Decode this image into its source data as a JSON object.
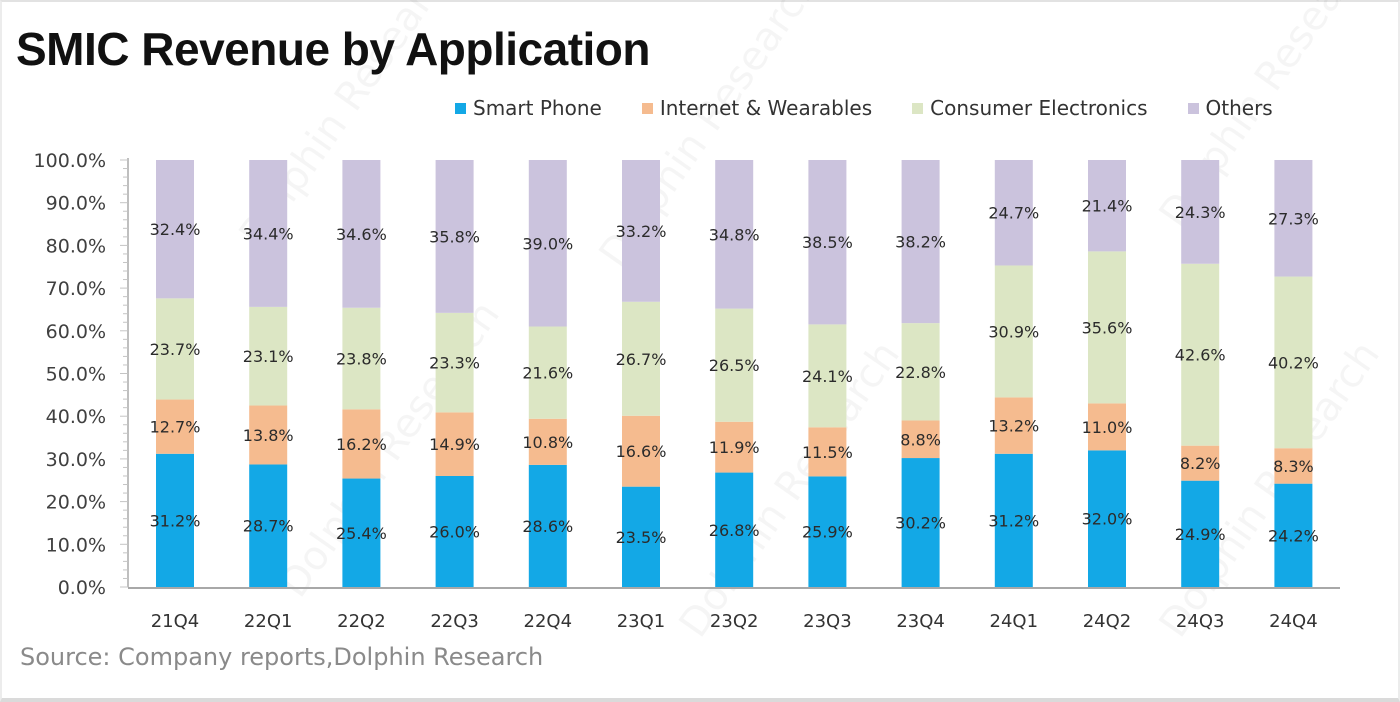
{
  "chart_data": {
    "type": "bar",
    "stacked": true,
    "title": "SMIC Revenue by Application",
    "xlabel": "",
    "ylabel": "",
    "ylim": [
      0,
      100
    ],
    "y_ticks": [
      "0.0%",
      "10.0%",
      "20.0%",
      "30.0%",
      "40.0%",
      "50.0%",
      "60.0%",
      "70.0%",
      "80.0%",
      "90.0%",
      "100.0%"
    ],
    "grid": false,
    "legend_position": "top-right",
    "categories": [
      "21Q4",
      "22Q1",
      "22Q2",
      "22Q3",
      "22Q4",
      "23Q1",
      "23Q2",
      "23Q3",
      "23Q4",
      "24Q1",
      "24Q2",
      "24Q3",
      "24Q4"
    ],
    "series": [
      {
        "name": "Smart Phone",
        "color": "#13a8e6",
        "values": [
          31.2,
          28.7,
          25.4,
          26.0,
          28.6,
          23.5,
          26.8,
          25.9,
          30.2,
          31.2,
          32.0,
          24.9,
          24.2
        ],
        "labels": [
          "31.2%",
          "28.7%",
          "25.4%",
          "26.0%",
          "28.6%",
          "23.5%",
          "26.8%",
          "25.9%",
          "30.2%",
          "31.2%",
          "32.0%",
          "24.9%",
          "24.2%"
        ]
      },
      {
        "name": "Internet & Wearables",
        "color": "#f5bb8f",
        "values": [
          12.7,
          13.8,
          16.2,
          14.9,
          10.8,
          16.6,
          11.9,
          11.5,
          8.8,
          13.2,
          11.0,
          8.2,
          8.3
        ],
        "labels": [
          "12.7%",
          "13.8%",
          "16.2%",
          "14.9%",
          "10.8%",
          "16.6%",
          "11.9%",
          "11.5%",
          "8.8%",
          "13.2%",
          "11.0%",
          "8.2%",
          "8.3%"
        ]
      },
      {
        "name": "Consumer Electronics",
        "color": "#dce6c4",
        "values": [
          23.7,
          23.1,
          23.8,
          23.3,
          21.6,
          26.7,
          26.5,
          24.1,
          22.8,
          30.9,
          35.6,
          42.6,
          40.2
        ],
        "labels": [
          "23.7%",
          "23.1%",
          "23.8%",
          "23.3%",
          "21.6%",
          "26.7%",
          "26.5%",
          "24.1%",
          "22.8%",
          "30.9%",
          "35.6%",
          "42.6%",
          "40.2%"
        ]
      },
      {
        "name": "Others",
        "color": "#cbc3dd",
        "values": [
          32.4,
          34.4,
          34.6,
          35.8,
          39.0,
          33.2,
          34.8,
          38.5,
          38.2,
          24.7,
          21.4,
          24.3,
          27.3
        ],
        "labels": [
          "32.4%",
          "34.4%",
          "34.6%",
          "35.8%",
          "39.0%",
          "33.2%",
          "34.8%",
          "38.5%",
          "38.2%",
          "24.7%",
          "21.4%",
          "24.3%",
          "27.3%"
        ]
      }
    ],
    "source": "Source: Company reports,Dolphin Research"
  },
  "watermark": "Dolphin Research"
}
